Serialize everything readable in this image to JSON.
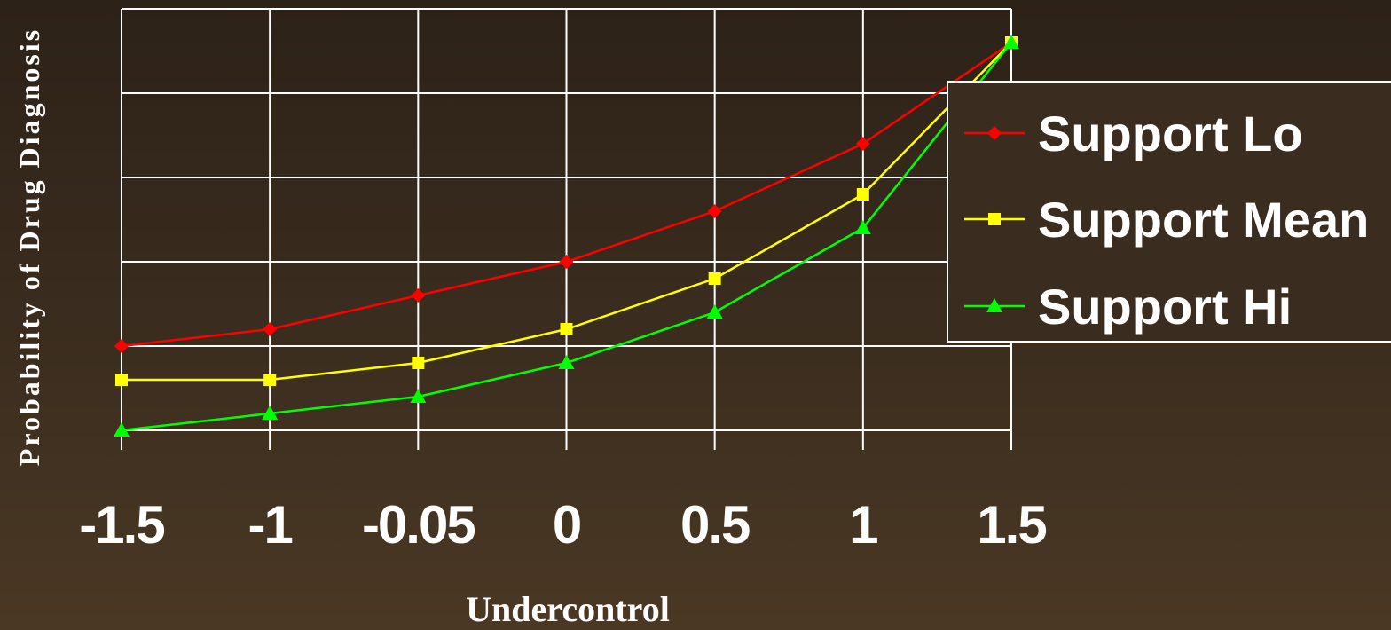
{
  "chart_data": {
    "type": "line",
    "title": "",
    "xlabel": "Undercontrol",
    "ylabel": "Probability of Drug Diagnosis",
    "categories": [
      "-1.5",
      "-1",
      "-0.05",
      "0",
      "0.5",
      "1",
      "1.5"
    ],
    "ylim": [
      0,
      5
    ],
    "grid": true,
    "legend_position": "right",
    "series": [
      {
        "name": "Support Lo",
        "color": "#ff0000",
        "marker": "diamond",
        "values": [
          1.0,
          1.2,
          1.6,
          2.0,
          2.6,
          3.4,
          4.6
        ]
      },
      {
        "name": "Support Mean",
        "color": "#ffff00",
        "marker": "square",
        "values": [
          0.6,
          0.6,
          0.8,
          1.2,
          1.8,
          2.8,
          4.6
        ]
      },
      {
        "name": "Support Hi",
        "color": "#00ff00",
        "marker": "triangle",
        "values": [
          0.0,
          0.2,
          0.4,
          0.8,
          1.4,
          2.4,
          4.6
        ]
      }
    ]
  },
  "colors": {
    "grid": "#ffffff",
    "text": "#ffffff",
    "legend_border": "#ffffff"
  }
}
